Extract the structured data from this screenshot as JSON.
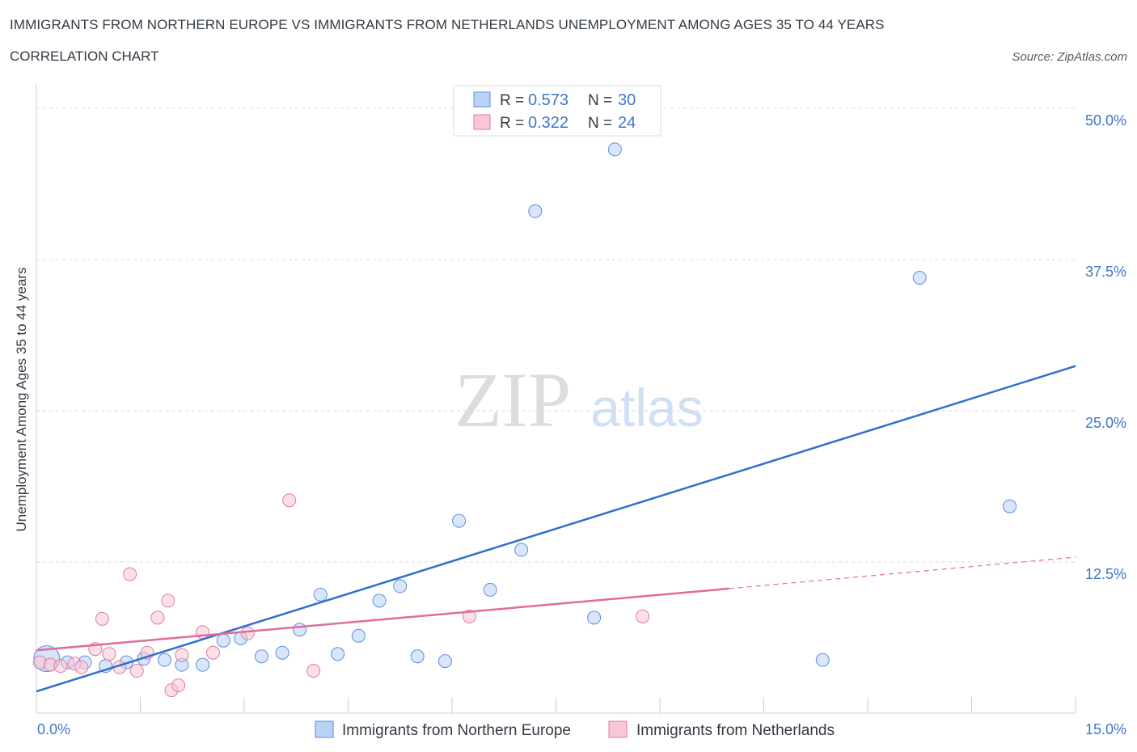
{
  "title": "IMMIGRANTS FROM NORTHERN EUROPE VS IMMIGRANTS FROM NETHERLANDS UNEMPLOYMENT AMONG AGES 35 TO 44 YEARS",
  "subtitle": "CORRELATION CHART",
  "source": "Source: ZipAtlas.com",
  "watermark": {
    "zip": "ZIP",
    "atlas": "atlas"
  },
  "colors": {
    "blue": "#5b8ee0",
    "blue_fill": "#b9d2f5",
    "blue_line": "#2f6fd0",
    "pink": "#e07ba0",
    "pink_fill": "#f8c6d6",
    "pink_line": "#e06c98",
    "axis_text": "#3f76c8",
    "grid": "#d5d8de"
  },
  "chart_data": {
    "type": "scatter",
    "xlabel": "",
    "ylabel": "Unemployment Among Ages 35 to 44 years",
    "xlim": [
      0,
      15
    ],
    "ylim": [
      0,
      50
    ],
    "x_tick_labels": [
      {
        "value": 0,
        "label": "0.0%"
      },
      {
        "value": 15,
        "label": "15.0%"
      }
    ],
    "y_tick_labels": [
      {
        "value": 12.5,
        "label": "12.5%"
      },
      {
        "value": 25,
        "label": "25.0%"
      },
      {
        "value": 37.5,
        "label": "37.5%"
      },
      {
        "value": 50,
        "label": "50.0%"
      }
    ],
    "legend_stats": [
      {
        "r_label": "R = ",
        "r_value": "0.573",
        "n_label": "N = ",
        "n_value": "30"
      },
      {
        "r_label": "R = ",
        "r_value": "0.322",
        "n_label": "N = ",
        "n_value": "24"
      }
    ],
    "series": [
      {
        "name": "Immigrants from Northern Europe",
        "color": "blue",
        "points": [
          {
            "x": 0.15,
            "y": 4.5,
            "big": true
          },
          {
            "x": 0.45,
            "y": 4.2
          },
          {
            "x": 0.7,
            "y": 4.2
          },
          {
            "x": 1.0,
            "y": 3.9
          },
          {
            "x": 1.3,
            "y": 4.2
          },
          {
            "x": 1.55,
            "y": 4.5
          },
          {
            "x": 1.85,
            "y": 4.4
          },
          {
            "x": 2.1,
            "y": 4.0
          },
          {
            "x": 2.4,
            "y": 4.0
          },
          {
            "x": 2.7,
            "y": 6.0
          },
          {
            "x": 2.95,
            "y": 6.2
          },
          {
            "x": 3.25,
            "y": 4.7
          },
          {
            "x": 3.55,
            "y": 5.0
          },
          {
            "x": 3.8,
            "y": 6.9
          },
          {
            "x": 4.1,
            "y": 9.8
          },
          {
            "x": 4.35,
            "y": 4.9
          },
          {
            "x": 4.65,
            "y": 6.4
          },
          {
            "x": 4.95,
            "y": 9.3
          },
          {
            "x": 5.25,
            "y": 10.5
          },
          {
            "x": 5.5,
            "y": 4.7
          },
          {
            "x": 5.9,
            "y": 4.3
          },
          {
            "x": 6.1,
            "y": 15.9
          },
          {
            "x": 6.55,
            "y": 10.2
          },
          {
            "x": 7.0,
            "y": 13.5
          },
          {
            "x": 7.2,
            "y": 41.5
          },
          {
            "x": 8.05,
            "y": 7.9
          },
          {
            "x": 8.35,
            "y": 46.6
          },
          {
            "x": 11.35,
            "y": 4.4
          },
          {
            "x": 12.75,
            "y": 36.0
          },
          {
            "x": 14.05,
            "y": 17.1
          }
        ],
        "trend": {
          "x0": 0,
          "y0": 1.8,
          "x1": 15,
          "y1": 28.7
        }
      },
      {
        "name": "Immigrants from Netherlands",
        "color": "pink",
        "points": [
          {
            "x": 0.05,
            "y": 4.2
          },
          {
            "x": 0.2,
            "y": 4.0
          },
          {
            "x": 0.35,
            "y": 3.9
          },
          {
            "x": 0.55,
            "y": 4.1
          },
          {
            "x": 0.65,
            "y": 3.8
          },
          {
            "x": 0.85,
            "y": 5.3
          },
          {
            "x": 0.95,
            "y": 7.8
          },
          {
            "x": 1.05,
            "y": 4.9
          },
          {
            "x": 1.2,
            "y": 3.8
          },
          {
            "x": 1.35,
            "y": 11.5
          },
          {
            "x": 1.45,
            "y": 3.5
          },
          {
            "x": 1.6,
            "y": 5.0
          },
          {
            "x": 1.75,
            "y": 7.9
          },
          {
            "x": 1.9,
            "y": 9.3
          },
          {
            "x": 1.95,
            "y": 1.9
          },
          {
            "x": 2.05,
            "y": 2.3
          },
          {
            "x": 2.1,
            "y": 4.8
          },
          {
            "x": 2.4,
            "y": 6.7
          },
          {
            "x": 2.55,
            "y": 5.0
          },
          {
            "x": 3.05,
            "y": 6.6
          },
          {
            "x": 3.65,
            "y": 17.6
          },
          {
            "x": 4.0,
            "y": 3.5
          },
          {
            "x": 6.25,
            "y": 8.0
          },
          {
            "x": 8.75,
            "y": 8.0
          }
        ],
        "trend": {
          "x0": 0,
          "y0": 5.2,
          "x1": 10,
          "y1": 10.3
        },
        "trend_dashed": {
          "x0": 10,
          "y0": 10.3,
          "x1": 15,
          "y1": 12.9
        }
      }
    ]
  }
}
